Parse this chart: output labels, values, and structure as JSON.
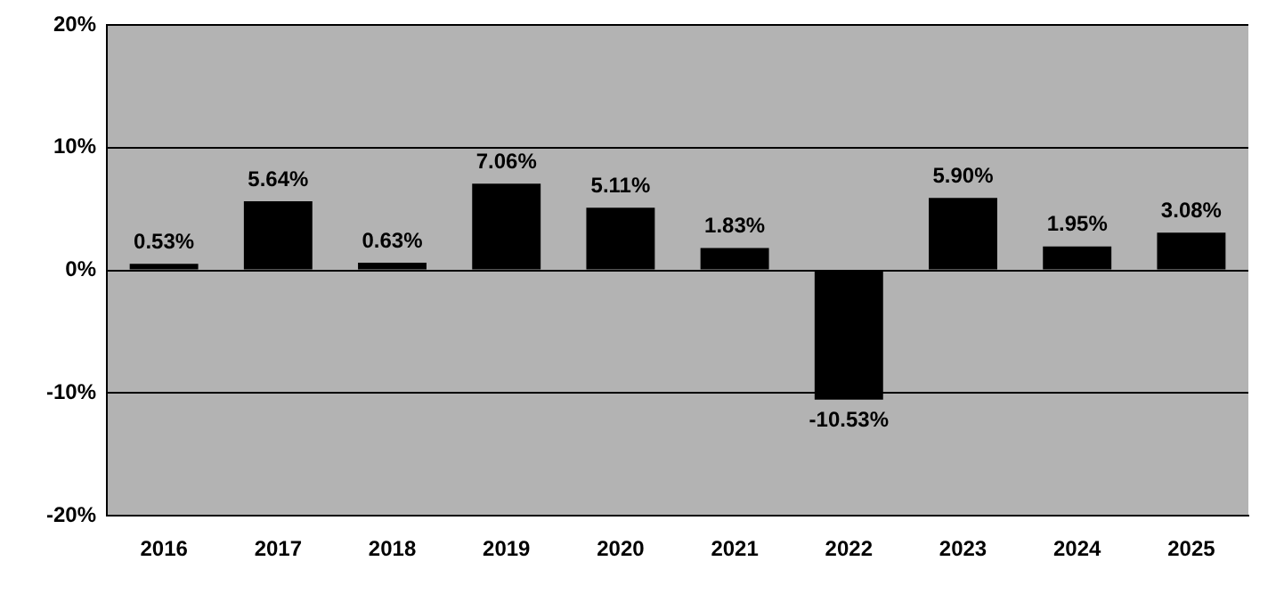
{
  "chart_data": {
    "type": "bar",
    "categories": [
      "2016",
      "2017",
      "2018",
      "2019",
      "2020",
      "2021",
      "2022",
      "2023",
      "2024",
      "2025"
    ],
    "values": [
      0.53,
      5.64,
      0.63,
      7.06,
      5.11,
      1.83,
      -10.53,
      5.9,
      1.95,
      3.08
    ],
    "value_labels": [
      "0.53%",
      "5.64%",
      "0.63%",
      "7.06%",
      "5.11%",
      "1.83%",
      "-10.53%",
      "5.90%",
      "1.95%",
      "3.08%"
    ],
    "color": "#000000",
    "ylim": [
      -20,
      20
    ],
    "yticks": [
      {
        "value": -20,
        "label": "-20%"
      },
      {
        "value": -10,
        "label": "-10%"
      },
      {
        "value": 0,
        "label": "0%"
      },
      {
        "value": 10,
        "label": "10%"
      },
      {
        "value": 20,
        "label": "20%"
      }
    ],
    "grid": "y",
    "legend": false
  }
}
